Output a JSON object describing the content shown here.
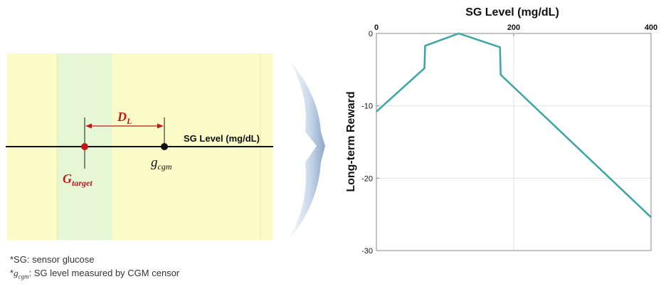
{
  "left_diagram": {
    "axis_label": "SG Level (mg/dL)",
    "distance_label": {
      "main": "D",
      "sub": "L"
    },
    "target_label": {
      "main": "G",
      "sub": "target"
    },
    "cgm_label": {
      "main": "g",
      "sub": "cgm"
    },
    "colors": {
      "yellow_band": "#fbfbc8",
      "green_band": "#e6f7d6",
      "target_point": "#c0181b",
      "cgm_point": "#111111",
      "distance_arrow": "#c0181b"
    }
  },
  "notes": {
    "sg_note": "*SG: sensor glucose",
    "cgm_note_prefix": "*",
    "cgm_note_symbol": "g",
    "cgm_note_sub": "cgm",
    "cgm_note_text": ": SG level measured by CGM censor"
  },
  "chart_data": {
    "type": "line",
    "title": "SG Level (mg/dL)",
    "xlabel": "SG Level (mg/dL)",
    "ylabel": "Long-term Reward",
    "xlim": [
      0,
      400
    ],
    "ylim": [
      -30,
      0
    ],
    "x_ticks": [
      0,
      200,
      400
    ],
    "y_ticks": [
      0,
      -10,
      -20,
      -30
    ],
    "x_axis_position": "top",
    "grid": true,
    "series": [
      {
        "color": "#3aa6a4",
        "points": [
          [
            0,
            -10.8
          ],
          [
            70,
            -4.8
          ],
          [
            71,
            -1.7
          ],
          [
            120,
            0
          ],
          [
            180,
            -1.9
          ],
          [
            181,
            -5.7
          ],
          [
            400,
            -25.4
          ]
        ]
      }
    ]
  }
}
